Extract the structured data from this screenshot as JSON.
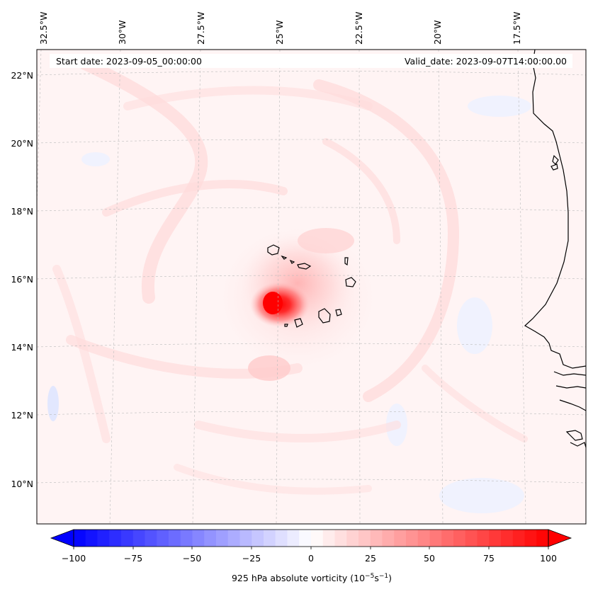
{
  "map": {
    "start_date": "Start date: 2023-09-05_00:00:00",
    "valid_date": "Valid_date: 2023-09-07T14:00:00.00",
    "lon_labels": [
      "32.5°W",
      "30°W",
      "27.5°W",
      "25°W",
      "22.5°W",
      "20°W",
      "17.5°W"
    ],
    "lat_labels": [
      "22°N",
      "20°N",
      "18°N",
      "16°N",
      "14°N",
      "12°N",
      "10°N"
    ],
    "colorbar": {
      "ticks": [
        "−100",
        "−75",
        "−50",
        "−25",
        "0",
        "25",
        "50",
        "75",
        "100"
      ],
      "label_main": "925 hPa absolute vorticity (10",
      "label_sup1": "−5",
      "label_mid": "s",
      "label_sup2": "−1",
      "label_end": ")",
      "min": -100,
      "max": 100,
      "colors": {
        "low": "#0000ff",
        "mid": "#ffffff",
        "high": "#ff0000"
      }
    },
    "colors": {
      "coastline": "#000000",
      "gridline": "#bbbbbb",
      "background": "#fff4f4"
    }
  }
}
